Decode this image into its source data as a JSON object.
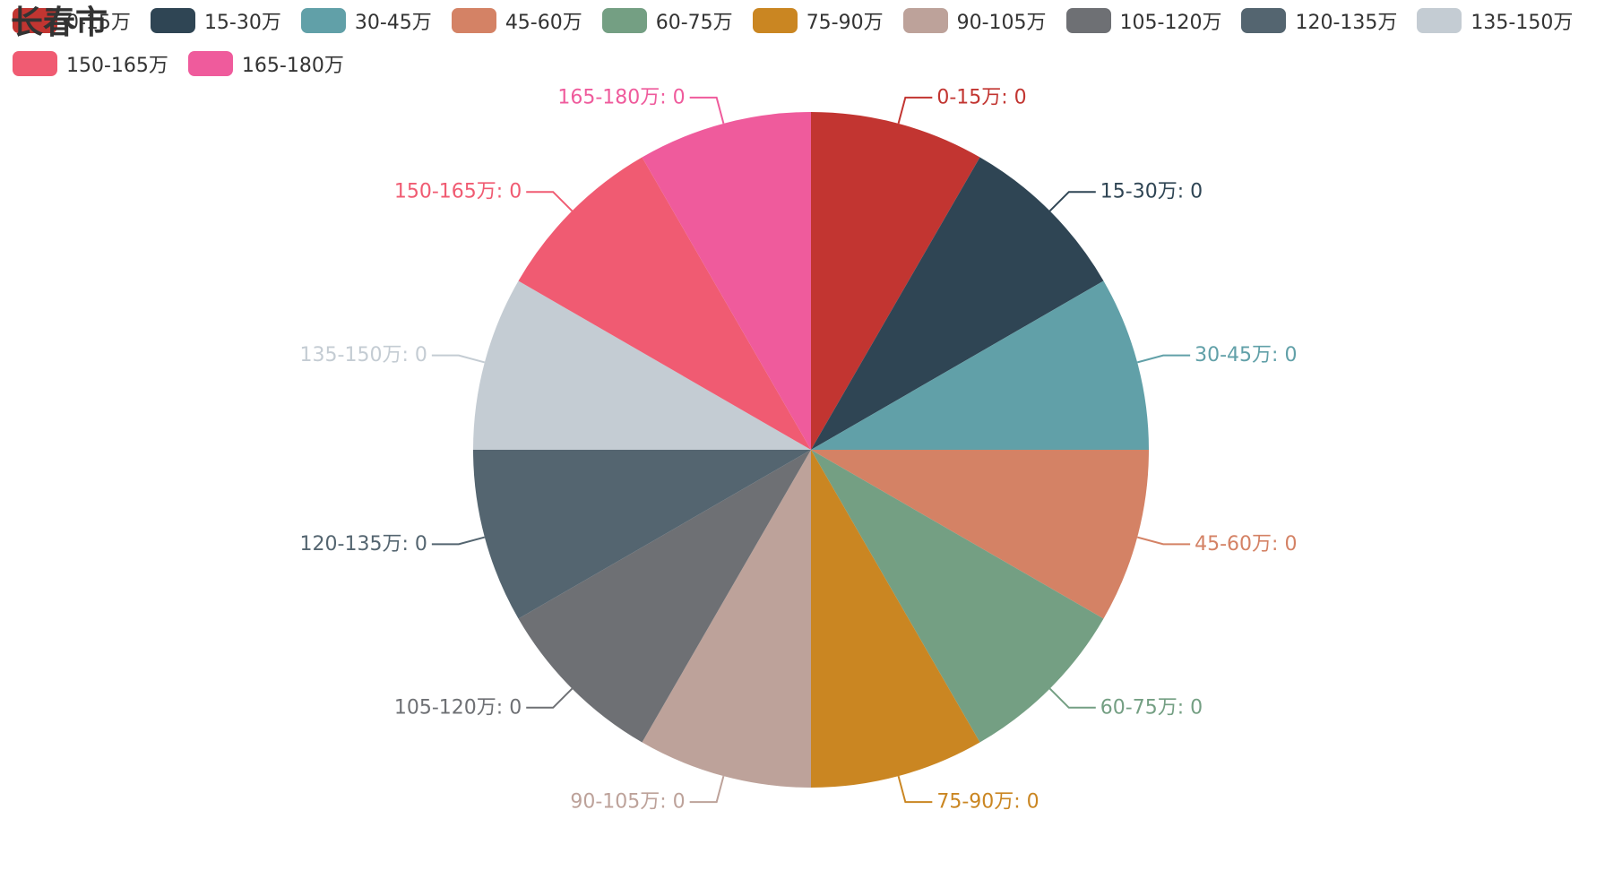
{
  "chart_data": {
    "type": "pie",
    "title": "长春市",
    "legend_position": "top-left",
    "label_format": "{name}: {value}",
    "slices": [
      {
        "name": "0-15万",
        "value": 0,
        "color": "#c23531"
      },
      {
        "name": "15-30万",
        "value": 0,
        "color": "#2f4554"
      },
      {
        "name": "30-45万",
        "value": 0,
        "color": "#61a0a8"
      },
      {
        "name": "45-60万",
        "value": 0,
        "color": "#d48265"
      },
      {
        "name": "60-75万",
        "value": 0,
        "color": "#749f83"
      },
      {
        "name": "75-90万",
        "value": 0,
        "color": "#ca8622"
      },
      {
        "name": "90-105万",
        "value": 0,
        "color": "#bda29a"
      },
      {
        "name": "105-120万",
        "value": 0,
        "color": "#6e7074"
      },
      {
        "name": "120-135万",
        "value": 0,
        "color": "#546570"
      },
      {
        "name": "135-150万",
        "value": 0,
        "color": "#c4ccd3"
      },
      {
        "name": "150-165万",
        "value": 0,
        "color": "#f05b72"
      },
      {
        "name": "165-180万",
        "value": 0,
        "color": "#ef5b9c"
      }
    ]
  }
}
